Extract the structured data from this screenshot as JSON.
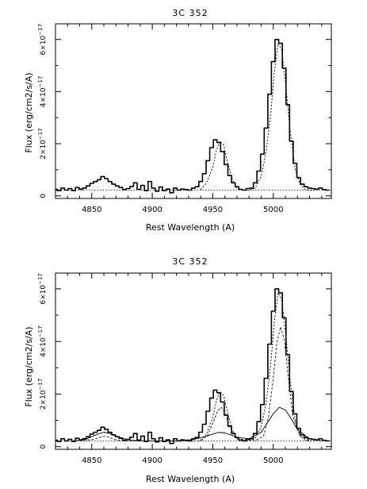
{
  "chart_data": [
    {
      "type": "line",
      "title": "3C 352",
      "xlabel": "Rest Wavelength (A)",
      "ylabel": "Flux (erg/cm2/s/A)",
      "xlim": [
        4820,
        5048
      ],
      "ylim": [
        -1e-18,
        6.6e-17
      ],
      "xticks": [
        4850,
        4900,
        4950,
        5000
      ],
      "xtick_labels": [
        "4850",
        "4900",
        "4950",
        "5000"
      ],
      "yticks": [
        0,
        2e-17,
        4e-17,
        6e-17
      ],
      "ytick_labels": [
        {
          "mant": "0",
          "exp": ""
        },
        {
          "mant": "2×10",
          "exp": "−17"
        },
        {
          "mant": "4×10",
          "exp": "−17"
        },
        {
          "mant": "6×10",
          "exp": "−17"
        }
      ],
      "continuum": 2.2e-18,
      "series": [
        {
          "style": "histogram",
          "x": [
            4820,
            4823,
            4826,
            4829,
            4832,
            4835,
            4838,
            4841,
            4844,
            4847,
            4850,
            4853,
            4856,
            4859,
            4862,
            4865,
            4868,
            4871,
            4874,
            4877,
            4880,
            4883,
            4886,
            4889,
            4892,
            4895,
            4898,
            4901,
            4904,
            4907,
            4910,
            4913,
            4916,
            4919,
            4922,
            4925,
            4928,
            4931,
            4934,
            4937,
            4940,
            4943,
            4946,
            4949,
            4952,
            4955,
            4958,
            4961,
            4964,
            4967,
            4970,
            4973,
            4976,
            4979,
            4982,
            4985,
            4988,
            4991,
            4994,
            4997,
            5000,
            5003,
            5006,
            5009,
            5012,
            5015,
            5018,
            5021,
            5024,
            5027,
            5030,
            5033,
            5036,
            5039,
            5042,
            5045
          ],
          "y": [
            0.25,
            0.2,
            0.3,
            0.22,
            0.28,
            0.2,
            0.32,
            0.26,
            0.3,
            0.38,
            0.48,
            0.55,
            0.62,
            0.74,
            0.66,
            0.55,
            0.45,
            0.38,
            0.32,
            0.24,
            0.28,
            0.36,
            0.5,
            0.25,
            0.4,
            0.2,
            0.55,
            0.3,
            0.18,
            0.34,
            0.2,
            0.26,
            0.12,
            0.3,
            0.22,
            0.26,
            0.24,
            0.22,
            0.3,
            0.35,
            0.55,
            0.85,
            1.35,
            1.85,
            2.15,
            2.05,
            1.7,
            1.2,
            0.78,
            0.5,
            0.35,
            0.25,
            0.22,
            0.28,
            0.3,
            0.5,
            0.95,
            1.6,
            2.6,
            3.9,
            5.15,
            6.0,
            5.85,
            4.9,
            3.5,
            2.1,
            1.25,
            0.7,
            0.45,
            0.35,
            0.3,
            0.28,
            0.26,
            0.3,
            0.24,
            0.22
          ]
        },
        {
          "style": "model",
          "x": [
            4940,
            4945,
            4950,
            4953,
            4956,
            4959,
            4962,
            4966,
            4970,
            4975,
            4980,
            4985,
            4990,
            4994,
            4998,
            5001,
            5004,
            5007,
            5010,
            5014,
            5018,
            5022,
            5026,
            5030,
            5035
          ],
          "y": [
            0.24,
            0.5,
            1.1,
            1.75,
            2.1,
            1.95,
            1.35,
            0.65,
            0.3,
            0.22,
            0.22,
            0.3,
            0.75,
            1.65,
            3.2,
            4.8,
            5.85,
            5.6,
            4.4,
            2.5,
            1.05,
            0.45,
            0.25,
            0.22,
            0.22
          ]
        }
      ]
    },
    {
      "type": "line",
      "title": "3C 352",
      "xlabel": "Rest Wavelength (A)",
      "ylabel": "Flux (erg/cm2/s/A)",
      "xlim": [
        4820,
        5048
      ],
      "ylim": [
        -1e-18,
        6.6e-17
      ],
      "xticks": [
        4850,
        4900,
        4950,
        5000
      ],
      "xtick_labels": [
        "4850",
        "4900",
        "4950",
        "5000"
      ],
      "yticks": [
        0,
        2e-17,
        4e-17,
        6e-17
      ],
      "ytick_labels": [
        {
          "mant": "0",
          "exp": ""
        },
        {
          "mant": "2×10",
          "exp": "−17"
        },
        {
          "mant": "4×10",
          "exp": "−17"
        },
        {
          "mant": "6×10",
          "exp": "−17"
        }
      ],
      "continuum": 2.2e-18,
      "series": [
        {
          "style": "histogram",
          "x": [
            4820,
            4823,
            4826,
            4829,
            4832,
            4835,
            4838,
            4841,
            4844,
            4847,
            4850,
            4853,
            4856,
            4859,
            4862,
            4865,
            4868,
            4871,
            4874,
            4877,
            4880,
            4883,
            4886,
            4889,
            4892,
            4895,
            4898,
            4901,
            4904,
            4907,
            4910,
            4913,
            4916,
            4919,
            4922,
            4925,
            4928,
            4931,
            4934,
            4937,
            4940,
            4943,
            4946,
            4949,
            4952,
            4955,
            4958,
            4961,
            4964,
            4967,
            4970,
            4973,
            4976,
            4979,
            4982,
            4985,
            4988,
            4991,
            4994,
            4997,
            5000,
            5003,
            5006,
            5009,
            5012,
            5015,
            5018,
            5021,
            5024,
            5027,
            5030,
            5033,
            5036,
            5039,
            5042,
            5045
          ],
          "y": [
            0.25,
            0.2,
            0.3,
            0.22,
            0.28,
            0.2,
            0.32,
            0.26,
            0.3,
            0.38,
            0.48,
            0.55,
            0.62,
            0.74,
            0.66,
            0.55,
            0.45,
            0.38,
            0.32,
            0.24,
            0.28,
            0.36,
            0.5,
            0.25,
            0.4,
            0.2,
            0.55,
            0.3,
            0.18,
            0.34,
            0.2,
            0.26,
            0.12,
            0.3,
            0.22,
            0.26,
            0.24,
            0.22,
            0.3,
            0.35,
            0.55,
            0.85,
            1.35,
            1.85,
            2.15,
            2.05,
            1.7,
            1.2,
            0.78,
            0.5,
            0.35,
            0.25,
            0.22,
            0.28,
            0.3,
            0.5,
            0.95,
            1.6,
            2.6,
            3.9,
            5.15,
            6.0,
            5.85,
            4.9,
            3.5,
            2.1,
            1.25,
            0.7,
            0.45,
            0.35,
            0.3,
            0.28,
            0.26,
            0.3,
            0.24,
            0.22
          ]
        },
        {
          "style": "model",
          "x": [
            4940,
            4945,
            4950,
            4953,
            4956,
            4959,
            4962,
            4966,
            4970,
            4975,
            4980,
            4985,
            4990,
            4994,
            4998,
            5001,
            5004,
            5007,
            5010,
            5014,
            5018,
            5022,
            5026,
            5030,
            5035
          ],
          "y": [
            0.24,
            0.5,
            1.1,
            1.75,
            2.1,
            1.95,
            1.35,
            0.65,
            0.3,
            0.22,
            0.22,
            0.3,
            0.75,
            1.65,
            3.2,
            4.8,
            5.85,
            5.6,
            4.4,
            2.5,
            1.05,
            0.45,
            0.25,
            0.22,
            0.22
          ]
        },
        {
          "style": "component-broad",
          "x": [
            4835,
            4845,
            4850,
            4855,
            4860,
            4865,
            4870,
            4880,
            4890,
            4900,
            4920,
            4935,
            4945,
            4950,
            4955,
            4960,
            4965,
            4970,
            4980,
            4990,
            4995,
            5000,
            5005,
            5010,
            5015,
            5020,
            5030,
            5040
          ],
          "y": [
            0.22,
            0.28,
            0.38,
            0.48,
            0.55,
            0.5,
            0.4,
            0.26,
            0.22,
            0.22,
            0.22,
            0.28,
            0.4,
            0.48,
            0.55,
            0.52,
            0.45,
            0.35,
            0.3,
            0.55,
            0.9,
            1.25,
            1.5,
            1.4,
            1.05,
            0.65,
            0.3,
            0.22
          ]
        },
        {
          "style": "component-narrow",
          "x": [
            4840,
            4850,
            4855,
            4858,
            4861,
            4864,
            4868,
            4875,
            4940,
            4946,
            4950,
            4954,
            4957,
            4960,
            4964,
            4970,
            4985,
            4992,
            4996,
            5000,
            5003,
            5006,
            5009,
            5012,
            5016,
            5022,
            5030
          ],
          "y": [
            0.22,
            0.27,
            0.32,
            0.38,
            0.41,
            0.36,
            0.28,
            0.22,
            0.22,
            0.45,
            0.9,
            1.35,
            1.5,
            1.3,
            0.75,
            0.3,
            0.22,
            0.4,
            1.1,
            2.6,
            3.95,
            4.55,
            4.1,
            2.8,
            1.2,
            0.4,
            0.22
          ]
        }
      ]
    }
  ]
}
